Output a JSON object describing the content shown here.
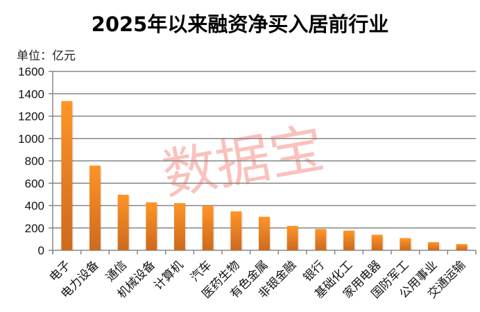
{
  "chart_data": {
    "type": "bar",
    "title": "2025年以来融资净买入居前行业",
    "unit_label": "单位：亿元",
    "watermark": "数据宝",
    "categories": [
      "电子",
      "电力设备",
      "通信",
      "机械设备",
      "计算机",
      "汽车",
      "医药生物",
      "有色金属",
      "非银金融",
      "银行",
      "基础化工",
      "家用电器",
      "国防军工",
      "公用事业",
      "交通运输"
    ],
    "values": [
      1335,
      758,
      497,
      429,
      422,
      398,
      348,
      300,
      218,
      190,
      176,
      139,
      109,
      73,
      55
    ],
    "ylim": [
      0,
      1600
    ],
    "yticks": [
      0,
      200,
      400,
      600,
      800,
      1000,
      1200,
      1400,
      1600
    ],
    "grid": true,
    "bar_color_top": "#ff9428",
    "bar_color_bottom": "#cc6a1e"
  }
}
